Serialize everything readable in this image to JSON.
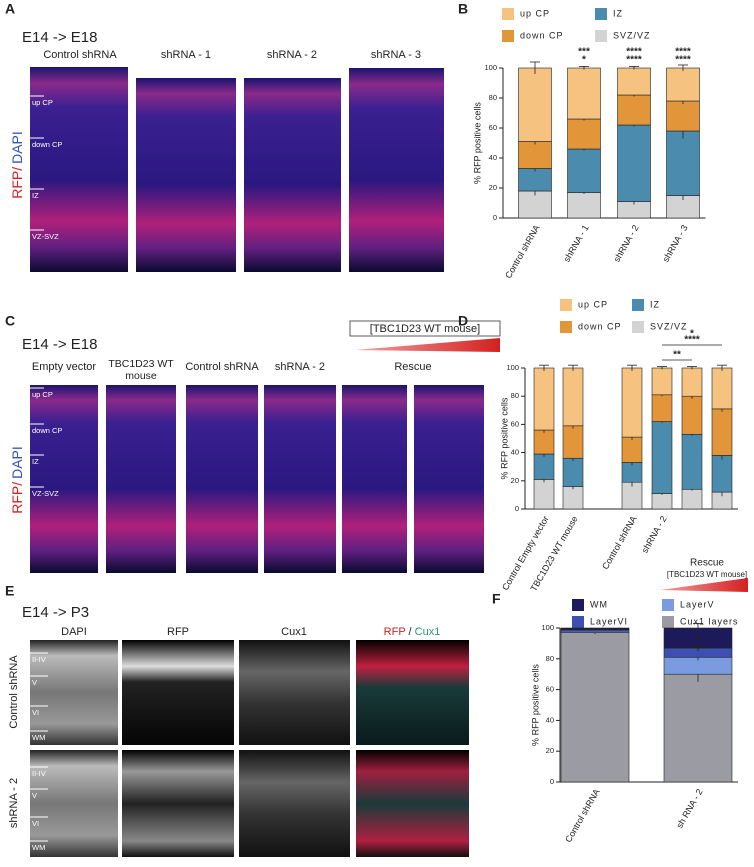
{
  "letters": [
    "A",
    "B",
    "C",
    "D",
    "E",
    "F"
  ],
  "panel_A": {
    "stage": "E14  -> E18",
    "columns": [
      "Control shRNA",
      "shRNA - 1",
      "shRNA - 2",
      "shRNA - 3"
    ],
    "stain": [
      "RFP/",
      "DAPI"
    ],
    "layers": [
      "up CP",
      "down CP",
      "IZ",
      "VZ-SVZ"
    ]
  },
  "panel_C": {
    "stage": "E14  -> E18",
    "columns": [
      "Empty vector",
      "TBC1D23 WT mouse",
      "Control shRNA",
      "shRNA - 2",
      "Rescue"
    ],
    "construct": "[TBC1D23 WT mouse]",
    "stain": [
      "RFP/",
      "DAPI"
    ],
    "layers": [
      "up CP",
      "down CP",
      "IZ",
      "VZ-SVZ"
    ]
  },
  "panel_E": {
    "stage": "E14  -> P3",
    "columns": [
      "DAPI",
      "RFP",
      "Cux1"
    ],
    "merge": [
      "RFP",
      " / ",
      "Cux1"
    ],
    "rows": [
      "Control shRNA",
      "shRNA - 2"
    ],
    "layers": [
      "II-IV",
      "V",
      "VI",
      "WM"
    ]
  },
  "chart_data": [
    {
      "type": "stacked_bar",
      "ylabel": "% RFP positive cells",
      "categories": [
        "Control shRNA",
        "shRNA - 1",
        "shRNA - 2",
        "shRNA - 3"
      ],
      "ylim": [
        0,
        100
      ],
      "yticks": [
        0,
        20,
        40,
        60,
        80,
        100
      ],
      "series": [
        {
          "name": "SVZ/VZ",
          "color": "#d3d3d3",
          "values": [
            18,
            17,
            11,
            15
          ],
          "errors": [
            3,
            1,
            2,
            3
          ]
        },
        {
          "name": "IZ",
          "color": "#4b8cae",
          "values": [
            15,
            29,
            51,
            43
          ],
          "errors": [
            2,
            1,
            1,
            5
          ]
        },
        {
          "name": "down CP",
          "color": "#e3953a",
          "values": [
            18,
            20,
            20,
            20
          ],
          "errors": [
            2,
            1,
            1,
            2
          ]
        },
        {
          "name": "up CP",
          "color": "#f5c27f",
          "values": [
            49,
            34,
            18,
            22
          ],
          "errors": [
            4,
            1,
            1,
            2
          ]
        }
      ],
      "annotations": [
        [],
        [
          {
            "text": "***",
            "color": "#e8a33a"
          },
          {
            "text": "*",
            "color": "#3f86b0"
          }
        ],
        [
          {
            "text": "****",
            "color": "#e8a33a"
          },
          {
            "text": "****",
            "color": "#3f86b0"
          }
        ],
        [
          {
            "text": "****",
            "color": "#e8a33a"
          },
          {
            "text": "****",
            "color": "#3f86b0"
          }
        ]
      ]
    },
    {
      "type": "stacked_bar",
      "ylabel": "% RFP positive cells",
      "categories": [
        "Control Empty vector",
        "TBC1D23 WT mouse",
        "Control shRNA",
        "shRNA - 2",
        null,
        null
      ],
      "group_label": "Rescue",
      "group_sublabel": "[TBC1D23 WT mouse]",
      "ylim": [
        0,
        100
      ],
      "yticks": [
        0,
        20,
        40,
        60,
        80,
        100
      ],
      "series": [
        {
          "name": "SVZ/VZ",
          "color": "#d3d3d3",
          "values": [
            21,
            16,
            19,
            11,
            14,
            12
          ],
          "errors": [
            2,
            2,
            3,
            1,
            1,
            3
          ]
        },
        {
          "name": "IZ",
          "color": "#4b8cae",
          "values": [
            18,
            20,
            14,
            51,
            39,
            26
          ],
          "errors": [
            2,
            2,
            2,
            1,
            1,
            3
          ]
        },
        {
          "name": "down CP",
          "color": "#e3953a",
          "values": [
            17,
            23,
            18,
            19,
            27,
            33
          ],
          "errors": [
            2,
            2,
            2,
            1,
            2,
            2
          ]
        },
        {
          "name": "up CP",
          "color": "#f5c27f",
          "values": [
            44,
            41,
            49,
            19,
            20,
            29
          ],
          "errors": [
            2,
            2,
            2,
            1,
            1,
            2
          ]
        }
      ],
      "brackets": [
        {
          "pair": [
            3,
            5
          ],
          "texts": [
            {
              "text": "*",
              "color": "#e8a33a"
            },
            {
              "text": "****",
              "color": "#3f86b0"
            }
          ]
        },
        {
          "pair": [
            3,
            4
          ],
          "texts": [
            {
              "text": "**",
              "color": "#3f86b0"
            }
          ]
        }
      ]
    },
    {
      "type": "stacked_bar",
      "ylabel": "% RFP positive cells",
      "categories": [
        "Control shRNA",
        "sh RNA - 2"
      ],
      "ylim": [
        0,
        100
      ],
      "yticks": [
        0,
        20,
        40,
        60,
        80,
        100
      ],
      "series": [
        {
          "name": "Cux1 layers",
          "color": "#9b9ba3",
          "values": [
            97,
            70
          ],
          "errors": [
            1,
            5
          ]
        },
        {
          "name": "LayerV",
          "color": "#7a9be0",
          "values": [
            1,
            11
          ],
          "errors": [
            null,
            2
          ]
        },
        {
          "name": "LayerVI",
          "color": "#3d4fb0",
          "values": [
            1,
            6
          ],
          "errors": [
            null,
            2
          ]
        },
        {
          "name": "WM",
          "color": "#1c1a5a",
          "values": [
            1,
            13
          ],
          "errors": [
            null,
            3
          ]
        }
      ],
      "annotations": [
        [],
        [
          {
            "text": "*",
            "color": "#4a5ac0"
          },
          {
            "text": "****",
            "color": "#a8a8b0"
          }
        ]
      ]
    }
  ]
}
